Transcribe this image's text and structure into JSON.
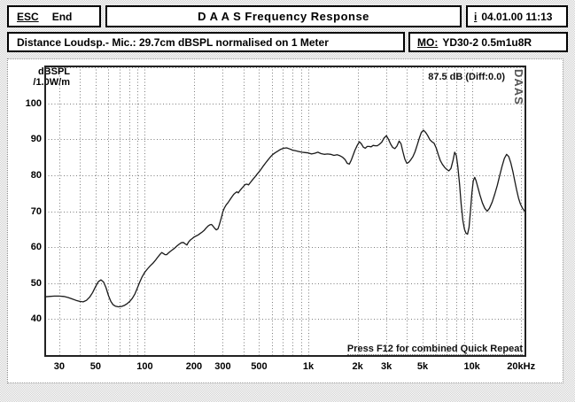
{
  "titlebar": {
    "esc_key": "ESC",
    "esc_action": "End",
    "title": "D A A S   Frequency Response",
    "info_key": "i",
    "datetime": "04.01.00 11:13"
  },
  "statusbar": {
    "distance_text": "Distance Loudsp.- Mic.: 29.7cm dBSPL normalised on 1 Meter",
    "mo_key": "MO:",
    "mo_value": "YD30-2 0.5m1u8R"
  },
  "chart": {
    "y_unit_line1": "dBSPL",
    "y_unit_line2": "/1.0W/m",
    "annotation": "87.5 dB (Diff:0.0)",
    "watermark": "DAAS",
    "footer_hint": "Press F12 for combined Quick Repeat"
  },
  "chart_data": {
    "type": "line",
    "title": "DAAS Frequency Response",
    "ylabel": "dBSPL /1.0W/m",
    "x_scale": "log",
    "xlim": [
      24.3,
      21500
    ],
    "ylim": [
      29.5,
      110.5
    ],
    "grid": true,
    "y_ticks": [
      40,
      50,
      60,
      70,
      80,
      90,
      100
    ],
    "grid_y": [
      30,
      40,
      50,
      60,
      70,
      80,
      90,
      100,
      110
    ],
    "grid_x": [
      30,
      40,
      50,
      60,
      70,
      80,
      90,
      100,
      200,
      300,
      400,
      500,
      600,
      700,
      800,
      900,
      1000,
      2000,
      3000,
      4000,
      5000,
      6000,
      7000,
      8000,
      9000,
      10000,
      20000
    ],
    "x_ticks": [
      {
        "value": 30,
        "label": "30"
      },
      {
        "value": 50,
        "label": "50"
      },
      {
        "value": 100,
        "label": "100"
      },
      {
        "value": 200,
        "label": "200"
      },
      {
        "value": 300,
        "label": "300"
      },
      {
        "value": 500,
        "label": "500"
      },
      {
        "value": 1000,
        "label": "1k"
      },
      {
        "value": 2000,
        "label": "2k"
      },
      {
        "value": 3000,
        "label": "3k"
      },
      {
        "value": 5000,
        "label": "5k"
      },
      {
        "value": 10000,
        "label": "10k"
      },
      {
        "value": 20000,
        "label": "20kHz"
      }
    ],
    "series": [
      {
        "name": "frequency-response-dBSPL",
        "points": [
          [
            24.5,
            46.2
          ],
          [
            26,
            46.3
          ],
          [
            28,
            46.4
          ],
          [
            30,
            46.4
          ],
          [
            32,
            46.3
          ],
          [
            34,
            46.0
          ],
          [
            36,
            45.6
          ],
          [
            38,
            45.2
          ],
          [
            40,
            44.9
          ],
          [
            42,
            44.8
          ],
          [
            44,
            45.2
          ],
          [
            46,
            46.1
          ],
          [
            48,
            47.4
          ],
          [
            50,
            49.0
          ],
          [
            52,
            50.4
          ],
          [
            54,
            50.9
          ],
          [
            56,
            50.3
          ],
          [
            58,
            48.7
          ],
          [
            60,
            46.5
          ],
          [
            62,
            44.9
          ],
          [
            64,
            44.0
          ],
          [
            66,
            43.6
          ],
          [
            69,
            43.4
          ],
          [
            72,
            43.5
          ],
          [
            75,
            43.8
          ],
          [
            78,
            44.3
          ],
          [
            81,
            44.9
          ],
          [
            84,
            45.8
          ],
          [
            87,
            47.0
          ],
          [
            90,
            48.6
          ],
          [
            93,
            50.2
          ],
          [
            96,
            51.6
          ],
          [
            100,
            53.0
          ],
          [
            104,
            54.0
          ],
          [
            108,
            54.8
          ],
          [
            112,
            55.5
          ],
          [
            116,
            56.3
          ],
          [
            120,
            57.2
          ],
          [
            124,
            58.0
          ],
          [
            127,
            58.5
          ],
          [
            130,
            58.2
          ],
          [
            133,
            57.9
          ],
          [
            136,
            57.9
          ],
          [
            139,
            58.3
          ],
          [
            143,
            58.8
          ],
          [
            147,
            59.2
          ],
          [
            152,
            59.7
          ],
          [
            157,
            60.3
          ],
          [
            162,
            60.8
          ],
          [
            167,
            61.2
          ],
          [
            172,
            61.3
          ],
          [
            177,
            60.9
          ],
          [
            181,
            60.6
          ],
          [
            185,
            61.4
          ],
          [
            190,
            62.0
          ],
          [
            195,
            62.4
          ],
          [
            200,
            62.8
          ],
          [
            206,
            63.1
          ],
          [
            212,
            63.4
          ],
          [
            218,
            63.8
          ],
          [
            224,
            64.2
          ],
          [
            230,
            64.6
          ],
          [
            237,
            65.3
          ],
          [
            244,
            65.9
          ],
          [
            250,
            66.2
          ],
          [
            256,
            66.3
          ],
          [
            262,
            65.8
          ],
          [
            268,
            65.2
          ],
          [
            274,
            64.8
          ],
          [
            280,
            65.1
          ],
          [
            285,
            66.1
          ],
          [
            290,
            67.3
          ],
          [
            295,
            68.5
          ],
          [
            300,
            69.8
          ],
          [
            307,
            70.9
          ],
          [
            315,
            71.8
          ],
          [
            323,
            72.4
          ],
          [
            332,
            73.2
          ],
          [
            341,
            74.0
          ],
          [
            350,
            74.7
          ],
          [
            358,
            75.1
          ],
          [
            366,
            75.4
          ],
          [
            373,
            75.1
          ],
          [
            381,
            75.7
          ],
          [
            391,
            76.3
          ],
          [
            401,
            76.9
          ],
          [
            411,
            77.4
          ],
          [
            421,
            77.5
          ],
          [
            431,
            77.3
          ],
          [
            443,
            78.0
          ],
          [
            457,
            78.8
          ],
          [
            471,
            79.5
          ],
          [
            486,
            80.3
          ],
          [
            501,
            81.0
          ],
          [
            516,
            81.8
          ],
          [
            531,
            82.6
          ],
          [
            547,
            83.4
          ],
          [
            565,
            84.2
          ],
          [
            584,
            85.0
          ],
          [
            604,
            85.7
          ],
          [
            625,
            86.2
          ],
          [
            650,
            86.7
          ],
          [
            678,
            87.2
          ],
          [
            707,
            87.5
          ],
          [
            737,
            87.6
          ],
          [
            768,
            87.3
          ],
          [
            800,
            87.0
          ],
          [
            836,
            86.8
          ],
          [
            874,
            86.6
          ],
          [
            913,
            86.4
          ],
          [
            955,
            86.3
          ],
          [
            1000,
            86.2
          ],
          [
            1046,
            85.9
          ],
          [
            1094,
            86.1
          ],
          [
            1144,
            86.4
          ],
          [
            1197,
            86.0
          ],
          [
            1252,
            85.8
          ],
          [
            1310,
            85.9
          ],
          [
            1370,
            85.8
          ],
          [
            1433,
            85.5
          ],
          [
            1500,
            85.7
          ],
          [
            1560,
            85.4
          ],
          [
            1620,
            85.0
          ],
          [
            1680,
            84.3
          ],
          [
            1730,
            83.3
          ],
          [
            1780,
            83.1
          ],
          [
            1830,
            84.2
          ],
          [
            1880,
            85.6
          ],
          [
            1930,
            87.0
          ],
          [
            1990,
            88.3
          ],
          [
            2050,
            89.3
          ],
          [
            2110,
            88.7
          ],
          [
            2170,
            87.8
          ],
          [
            2230,
            87.5
          ],
          [
            2290,
            88.0
          ],
          [
            2350,
            88.0
          ],
          [
            2420,
            87.9
          ],
          [
            2490,
            88.3
          ],
          [
            2560,
            88.2
          ],
          [
            2640,
            88.2
          ],
          [
            2720,
            88.6
          ],
          [
            2810,
            89.2
          ],
          [
            2900,
            90.3
          ],
          [
            3000,
            91.0
          ],
          [
            3090,
            90.0
          ],
          [
            3180,
            88.7
          ],
          [
            3280,
            87.7
          ],
          [
            3380,
            87.4
          ],
          [
            3480,
            88.1
          ],
          [
            3590,
            89.5
          ],
          [
            3690,
            88.7
          ],
          [
            3790,
            86.5
          ],
          [
            3890,
            84.5
          ],
          [
            4000,
            83.3
          ],
          [
            4110,
            83.6
          ],
          [
            4230,
            84.3
          ],
          [
            4360,
            85.2
          ],
          [
            4490,
            86.5
          ],
          [
            4630,
            88.4
          ],
          [
            4770,
            90.3
          ],
          [
            4910,
            91.9
          ],
          [
            5060,
            92.5
          ],
          [
            5210,
            91.9
          ],
          [
            5370,
            91.0
          ],
          [
            5530,
            89.9
          ],
          [
            5700,
            89.3
          ],
          [
            5870,
            88.9
          ],
          [
            6050,
            87.6
          ],
          [
            6230,
            85.7
          ],
          [
            6420,
            84.0
          ],
          [
            6610,
            83.0
          ],
          [
            6810,
            82.2
          ],
          [
            7020,
            81.6
          ],
          [
            7230,
            81.2
          ],
          [
            7450,
            81.9
          ],
          [
            7670,
            84.2
          ],
          [
            7850,
            86.4
          ],
          [
            8030,
            85.5
          ],
          [
            8200,
            82.5
          ],
          [
            8400,
            77.5
          ],
          [
            8600,
            72.0
          ],
          [
            8800,
            67.5
          ],
          [
            9000,
            65.0
          ],
          [
            9200,
            63.9
          ],
          [
            9400,
            63.6
          ],
          [
            9600,
            65.5
          ],
          [
            9800,
            70.0
          ],
          [
            10000,
            75.0
          ],
          [
            10200,
            78.5
          ],
          [
            10400,
            79.4
          ],
          [
            10600,
            78.5
          ],
          [
            10900,
            76.5
          ],
          [
            11200,
            74.5
          ],
          [
            11600,
            72.3
          ],
          [
            12000,
            70.8
          ],
          [
            12400,
            70.0
          ],
          [
            12800,
            70.8
          ],
          [
            13300,
            72.5
          ],
          [
            13800,
            74.8
          ],
          [
            14300,
            77.2
          ],
          [
            14800,
            80.0
          ],
          [
            15300,
            82.5
          ],
          [
            15800,
            84.7
          ],
          [
            16300,
            85.8
          ],
          [
            16800,
            85.2
          ],
          [
            17300,
            83.4
          ],
          [
            17800,
            81.0
          ],
          [
            18300,
            78.3
          ],
          [
            18800,
            75.8
          ],
          [
            19300,
            73.6
          ],
          [
            19800,
            72.0
          ],
          [
            20400,
            70.8
          ],
          [
            21000,
            70.0
          ],
          [
            21400,
            69.9
          ]
        ]
      }
    ]
  }
}
